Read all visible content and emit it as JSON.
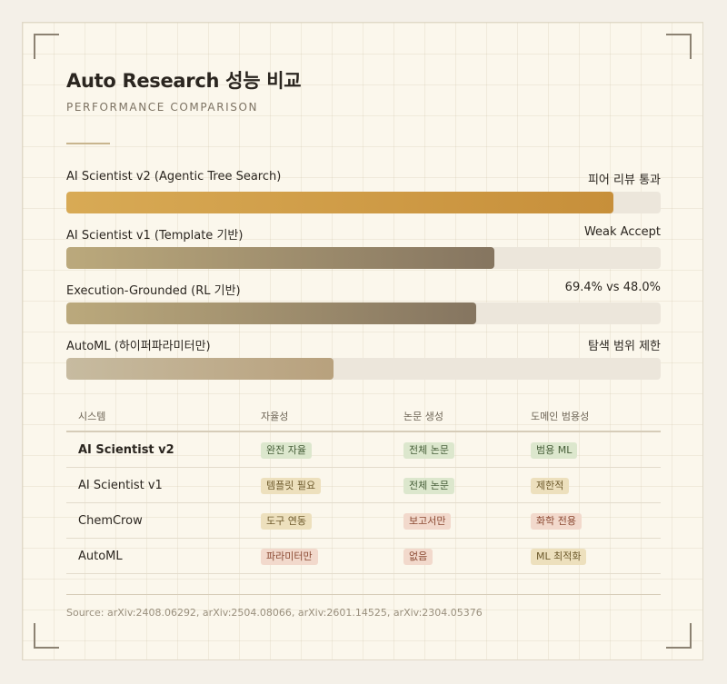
{
  "header": {
    "title": "Auto Research 성능 비교",
    "subtitle": "PERFORMANCE COMPARISON"
  },
  "chart_data": {
    "type": "bar",
    "orientation": "horizontal",
    "title": "Auto Research 성능 비교",
    "categories": [
      "AI Scientist v2 (Agentic Tree Search)",
      "AI Scientist v1 (Template 기반)",
      "Execution-Grounded (RL 기반)",
      "AutoML (하이퍼파라미터만)"
    ],
    "annotations": [
      "피어 리뷰 통과",
      "Weak Accept",
      "69.4% vs 48.0%",
      "탐색 범위 제한"
    ],
    "values": [
      92,
      72,
      69,
      45
    ],
    "xlim": [
      0,
      100
    ],
    "xlabel": "",
    "ylabel": "",
    "grid": false,
    "legend": "none"
  },
  "table": {
    "headers": [
      "시스템",
      "자율성",
      "논문 생성",
      "도메인 범용성"
    ],
    "rows": [
      {
        "system": "AI Scientist v2",
        "bold": true,
        "autonomy": {
          "text": "완전 자율",
          "tone": "green"
        },
        "paper": {
          "text": "전체 논문",
          "tone": "green"
        },
        "domain": {
          "text": "범용 ML",
          "tone": "green"
        }
      },
      {
        "system": "AI Scientist v1",
        "bold": false,
        "autonomy": {
          "text": "템플릿 필요",
          "tone": "amber"
        },
        "paper": {
          "text": "전체 논문",
          "tone": "green"
        },
        "domain": {
          "text": "제한적",
          "tone": "amber"
        }
      },
      {
        "system": "ChemCrow",
        "bold": false,
        "autonomy": {
          "text": "도구 연동",
          "tone": "amber"
        },
        "paper": {
          "text": "보고서만",
          "tone": "red"
        },
        "domain": {
          "text": "화학 전용",
          "tone": "red"
        }
      },
      {
        "system": "AutoML",
        "bold": false,
        "autonomy": {
          "text": "파라미터만",
          "tone": "red"
        },
        "paper": {
          "text": "없음",
          "tone": "red"
        },
        "domain": {
          "text": "ML 최적화",
          "tone": "amber"
        }
      }
    ]
  },
  "footer": {
    "source": "Source: arXiv:2408.06292, arXiv:2504.08066, arXiv:2601.14525, arXiv:2304.05376"
  },
  "colors": {
    "background": "#f4f0e8",
    "card": "#fbf7ec",
    "accent": "#c8b58e",
    "bar_primary": "#d8aa55",
    "bar_secondary": "#857560",
    "tag_green": "#dce7cd",
    "tag_amber": "#ede0bd",
    "tag_red": "#f2d9cc"
  }
}
